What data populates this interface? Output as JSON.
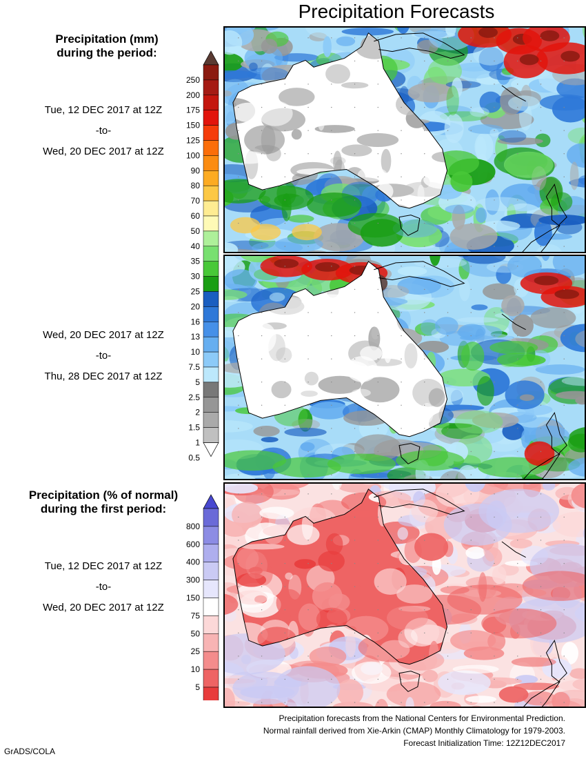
{
  "title": "Precipitation Forecasts",
  "precip_legend": {
    "heading_line1": "Precipitation (mm)",
    "heading_line2": "during the period:",
    "levels": [
      "250",
      "200",
      "175",
      "150",
      "125",
      "100",
      "90",
      "80",
      "70",
      "60",
      "50",
      "40",
      "35",
      "30",
      "25",
      "20",
      "16",
      "13",
      "10",
      "7.5",
      "5",
      "2.5",
      "2",
      "1.5",
      "1",
      "0.5"
    ],
    "colors": [
      "#8b1a10",
      "#a51b14",
      "#c4160e",
      "#e2140c",
      "#f53c0a",
      "#fb6e0a",
      "#fb8c12",
      "#fcab22",
      "#fcc845",
      "#feec92",
      "#fefab6",
      "#aef09a",
      "#78e070",
      "#48c838",
      "#1a9e14",
      "#1a5ec0",
      "#2e78d8",
      "#4690e8",
      "#66aef0",
      "#8ccaf8",
      "#bce8fc",
      "#787878",
      "#969696",
      "#aaaaaa",
      "#c0c0c0"
    ],
    "top_arrow_color": "#5a3a32"
  },
  "period1": {
    "start": "Tue, 12 DEC 2017 at 12Z",
    "sep": "-to-",
    "end": "Wed, 20 DEC 2017 at 12Z"
  },
  "period2": {
    "start": "Wed, 20 DEC 2017 at 12Z",
    "sep": "-to-",
    "end": "Thu, 28 DEC 2017 at 12Z"
  },
  "pct_legend": {
    "heading_line1": "Precipitation (% of normal)",
    "heading_line2": "during the first period:",
    "levels": [
      "800",
      "600",
      "400",
      "300",
      "150",
      "75",
      "50",
      "25",
      "10",
      "5"
    ],
    "colors": [
      "#6a6ad8",
      "#8c8ce4",
      "#aeaeee",
      "#cacaf4",
      "#e6e6fc",
      "#ffffff",
      "#fcd8d8",
      "#f8b4b4",
      "#f48c8c",
      "#ee6464",
      "#e83c3c"
    ],
    "top_arrow_color": "#4848d0",
    "bottom_arrow_color": "#e02828"
  },
  "period3": {
    "start": "Tue, 12 DEC 2017 at 12Z",
    "sep": "-to-",
    "end": "Wed, 20 DEC 2017 at 12Z"
  },
  "footer": {
    "line1": "Precipitation forecasts from the National Centers for Environmental Prediction.",
    "line2": "Normal rainfall derived from Xie-Arkin (CMAP) Monthly Climatology for 1979-2003.",
    "line3": "Forecast Initialization Time: 12Z12DEC2017"
  },
  "credit": "GrADS/COLA"
}
